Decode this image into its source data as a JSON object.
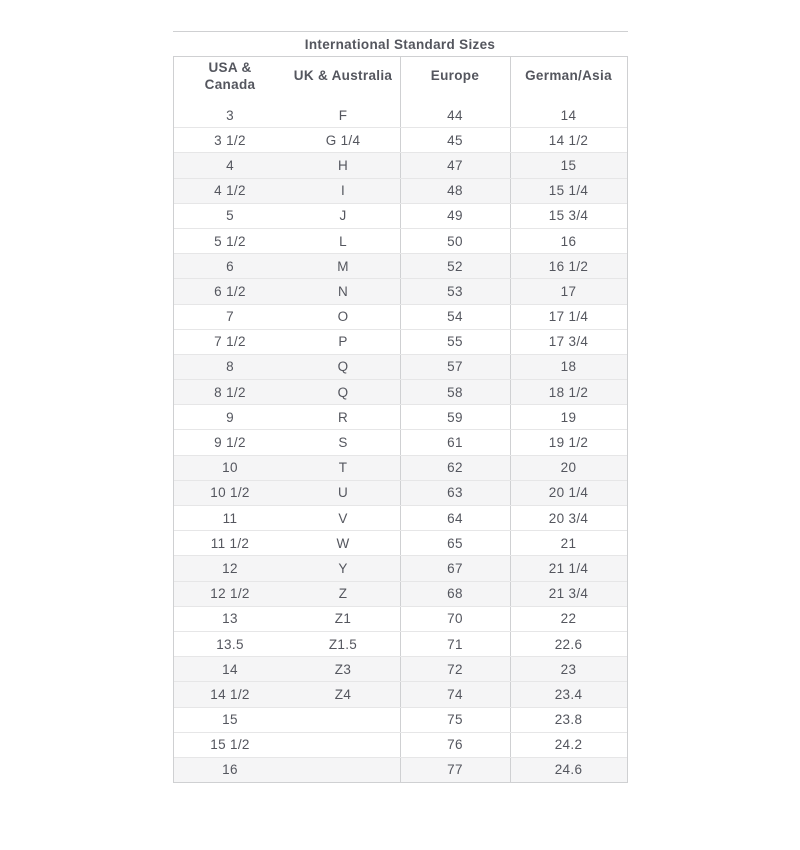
{
  "colors": {
    "text": "#54565e",
    "band": "#f5f5f6",
    "border_strong": "#cfd0d2",
    "border_light": "#e6e6e7"
  },
  "chart_data": {
    "type": "table",
    "title": "International Standard Sizes",
    "columns": [
      "USA &\nCanada",
      "UK & Australia",
      "Europe",
      "German/Asia"
    ],
    "rows": [
      [
        "3",
        "F",
        "44",
        "14"
      ],
      [
        "3 1/2",
        "G 1/4",
        "45",
        "14 1/2"
      ],
      [
        "4",
        "H",
        "47",
        "15"
      ],
      [
        "4 1/2",
        "I",
        "48",
        "15 1/4"
      ],
      [
        "5",
        "J",
        "49",
        "15 3/4"
      ],
      [
        "5 1/2",
        "L",
        "50",
        "16"
      ],
      [
        "6",
        "M",
        "52",
        "16 1/2"
      ],
      [
        "6 1/2",
        "N",
        "53",
        "17"
      ],
      [
        "7",
        "O",
        "54",
        "17 1/4"
      ],
      [
        "7 1/2",
        "P",
        "55",
        "17 3/4"
      ],
      [
        "8",
        "Q",
        "57",
        "18"
      ],
      [
        "8 1/2",
        "Q",
        "58",
        "18 1/2"
      ],
      [
        "9",
        "R",
        "59",
        "19"
      ],
      [
        "9 1/2",
        "S",
        "61",
        "19 1/2"
      ],
      [
        "10",
        "T",
        "62",
        "20"
      ],
      [
        "10 1/2",
        "U",
        "63",
        "20 1/4"
      ],
      [
        "11",
        "V",
        "64",
        "20 3/4"
      ],
      [
        "11 1/2",
        "W",
        "65",
        "21"
      ],
      [
        "12",
        "Y",
        "67",
        "21 1/4"
      ],
      [
        "12 1/2",
        "Z",
        "68",
        "21 3/4"
      ],
      [
        "13",
        "Z1",
        "70",
        "22"
      ],
      [
        "13.5",
        "Z1.5",
        "71",
        "22.6"
      ],
      [
        "14",
        "Z3",
        "72",
        "23"
      ],
      [
        "14 1/2",
        "Z4",
        "74",
        "23.4"
      ],
      [
        "15",
        "",
        "75",
        "23.8"
      ],
      [
        "15 1/2",
        "",
        "76",
        "24.2"
      ],
      [
        "16",
        "",
        "77",
        "24.6"
      ]
    ]
  }
}
